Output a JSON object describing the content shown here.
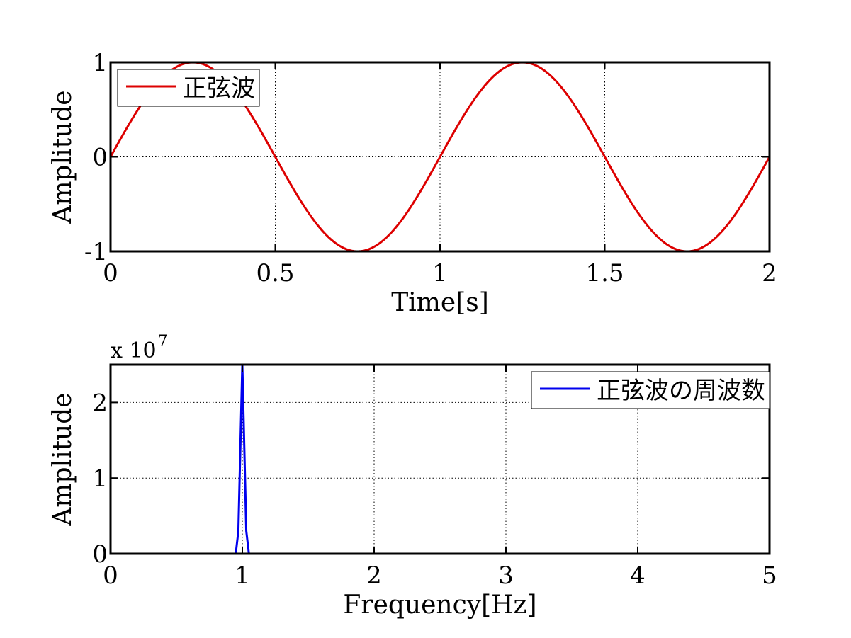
{
  "chart_data": [
    {
      "type": "line",
      "xlabel": "Time[s]",
      "ylabel": "Amplitude",
      "xlim": [
        0,
        2
      ],
      "ylim": [
        -1,
        1
      ],
      "xticks": [
        0,
        0.5,
        1,
        1.5,
        2
      ],
      "xtick_labels": [
        "0",
        "0.5",
        "1",
        "1.5",
        "2"
      ],
      "yticks": [
        -1,
        0,
        1
      ],
      "ytick_labels": [
        "-1",
        "0",
        "1"
      ],
      "grid": true,
      "legend_position": "top-left",
      "series": [
        {
          "name": "正弦波",
          "color": "#dd0000",
          "function": "sin(2*pi*1*t)",
          "frequency_hz": 1,
          "x_range": [
            0,
            2
          ]
        }
      ]
    },
    {
      "type": "line",
      "xlabel": "Frequency[Hz]",
      "ylabel": "Amplitude",
      "xlim": [
        0,
        5
      ],
      "ylim": [
        0,
        2.5
      ],
      "xticks": [
        0,
        1,
        2,
        3,
        4,
        5
      ],
      "xtick_labels": [
        "0",
        "1",
        "2",
        "3",
        "4",
        "5"
      ],
      "yticks": [
        0,
        1,
        2
      ],
      "ytick_labels": [
        "0",
        "1",
        "2"
      ],
      "y_multiplier_base": "x 10",
      "y_multiplier_exponent": "7",
      "grid": true,
      "legend_position": "top-right",
      "series": [
        {
          "name": "正弦波の周波数",
          "color": "#0000ee",
          "x": [
            0.95,
            0.97,
            0.985,
            1.0,
            1.015,
            1.03,
            1.05
          ],
          "y": [
            0,
            0.3,
            1.4,
            2.5,
            1.4,
            0.3,
            0
          ]
        }
      ]
    }
  ]
}
